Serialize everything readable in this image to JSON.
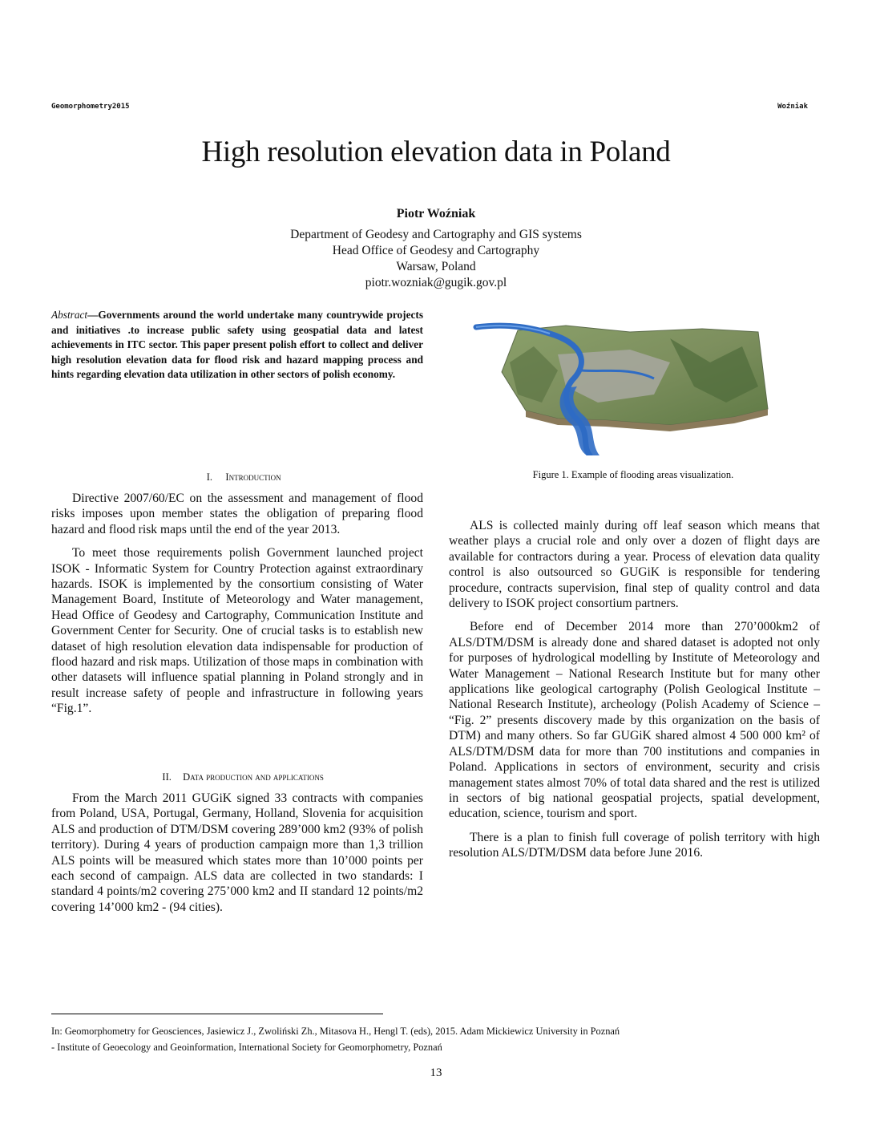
{
  "header": {
    "left": "Geomorphometry2015",
    "right": "Woźniak"
  },
  "title": "High resolution elevation data in Poland",
  "author": "Piotr Woźniak",
  "affiliation": [
    "Department of Geodesy and Cartography and GIS systems",
    "Head Office of Geodesy and Cartography",
    "Warsaw, Poland",
    "piotr.wozniak@gugik.gov.pl"
  ],
  "abstract": {
    "label": "Abstract",
    "text": "—Governments around the world undertake many countrywide projects and initiatives .to increase public safety using geospatial data and latest achievements in ITC sector. This paper present polish effort to collect and deliver high resolution elevation data for flood risk and hazard mapping process and hints regarding elevation data utilization in other sectors of polish economy."
  },
  "sections": [
    {
      "number": "I.",
      "title": "Introduction",
      "paragraphs": [
        "Directive 2007/60/EC on the assessment and management of flood risks imposes upon member states the obligation of preparing flood hazard and flood risk maps until the end of the year 2013.",
        "To meet those requirements polish Government launched project ISOK - Informatic System for Country Protection against extraordinary hazards. ISOK is implemented by the consortium consisting of Water Management Board, Institute of Meteorology and Water management, Head Office of Geodesy and Cartography, Communication Institute and Government Center for Security. One of crucial tasks is to establish new dataset of high resolution elevation data indispensable for production of flood hazard and risk maps. Utilization of those maps in combination with other datasets will influence spatial planning in Poland strongly and in result increase safety of people and infrastructure in following years “Fig.1”."
      ]
    },
    {
      "number": "II.",
      "title": "Data production and applications",
      "paragraphs": [
        "From the March 2011 GUGiK signed 33 contracts with companies from Poland, USA, Portugal, Germany, Holland, Slovenia for acquisition ALS and production of DTM/DSM covering 289’000 km2 (93% of polish territory). During 4 years of production campaign more than 1,3 trillion ALS points will be measured which states more than 10’000 points per each second of campaign. ALS data are collected in two standards: I standard 4 points/m2 covering 275’000 km2 and II standard 12 points/m2 covering 14’000 km2 - (94 cities)."
      ]
    }
  ],
  "figure": {
    "caption": "Figure 1. Example of flooding areas visualization.",
    "colors": {
      "land": "#7d8f5e",
      "ridge": "#4f6b3a",
      "urban": "#a8a8a0",
      "water": "#2f6cc4",
      "water_light": "#6aa0e6"
    }
  },
  "right_column": [
    "ALS is collected mainly during  off leaf season which means that weather plays a crucial role and only over a dozen of flight days are available for contractors during a year. Process of elevation data quality control is also outsourced so GUGiK is responsible for tendering procedure, contracts supervision, final step of quality control and data delivery to ISOK project consortium partners.",
    "Before end of December 2014 more than 270’000km2 of ALS/DTM/DSM is already done and shared dataset is adopted not only for purposes of hydrological modelling by Institute of Meteorology and Water Management – National Research Institute but for many other applications like geological cartography (Polish Geological Institute – National Research Institute), archeology (Polish Academy of Science – “Fig. 2” presents discovery made by this organization on the basis of DTM) and many others. So far GUGiK shared almost 4 500 000 km² of ALS/DTM/DSM data for more than 700 institutions and companies in Poland.  Applications in  sectors of environment, security and  crisis management states almost 70% of total data shared and the rest is utilized in sectors of big national geospatial projects, spatial development, education, science, tourism and sport.",
    "There is a plan to finish full coverage of polish territory with high resolution ALS/DTM/DSM data before June 2016."
  ],
  "footnote": [
    "In: Geomorphometry for Geosciences, Jasiewicz J., Zwoliński Zh., Mitasova H., Hengl T. (eds), 2015.  Adam Mickiewicz University in Poznań",
    "- Institute of Geoecology and Geoinformation, International Society for Geomorphometry, Poznań"
  ],
  "page_number": "13"
}
